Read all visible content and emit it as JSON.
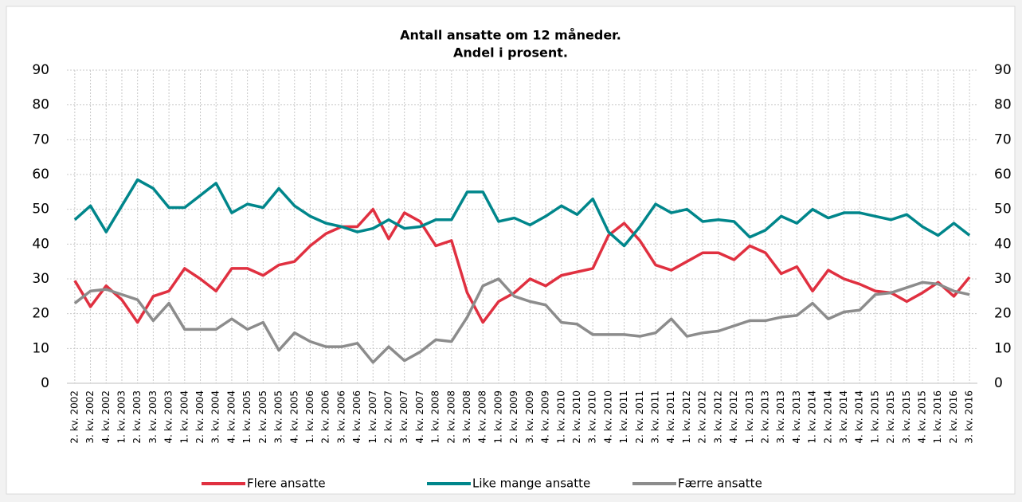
{
  "chart_data": {
    "type": "line",
    "title": "Antall ansatte om 12 måneder.",
    "subtitle": "Andel i prosent.",
    "categories": [
      "2. kv. 2002",
      "3. kv. 2002",
      "4. kv. 2002",
      "1. kv. 2003",
      "2. kv. 2003",
      "3. kv. 2003",
      "4. kv. 2003",
      "1. kv. 2004",
      "2. kv. 2004",
      "3. kv. 2004",
      "4. kv. 2004",
      "1. kv. 2005",
      "2. kv. 2005",
      "3. kv. 2005",
      "4. kv. 2005",
      "1. kv. 2006",
      "2. kv. 2006",
      "3. kv. 2006",
      "4. kv. 2006",
      "1. kv. 2007",
      "2. kv. 2007",
      "3. kv. 2007",
      "4. kv. 2007",
      "1. kv. 2008",
      "2. kv. 2008",
      "3. kv. 2008",
      "4. kv. 2008",
      "1. kv. 2009",
      "2. kv. 2009",
      "3. kv. 2009",
      "4. kv. 2009",
      "1. kv. 2010",
      "2. kv. 2010",
      "3. kv. 2010",
      "4. kv. 2010",
      "1. kv. 2011",
      "2. kv. 2011",
      "3. kv. 2011",
      "4. kv. 2011",
      "1. kv. 2012",
      "2. kv. 2012",
      "3. kv. 2012",
      "4. kv. 2012",
      "1. kv. 2013",
      "2. kv. 2013",
      "3. kv. 2013",
      "4. kv. 2013",
      "1. kv. 2014",
      "2. kv. 2014",
      "3. kv. 2014",
      "4. kv. 2014",
      "1. kv. 2015",
      "2. kv. 2015",
      "3. kv. 2015",
      "4. kv. 2015",
      "1. kv. 2016",
      "2. kv. 2016",
      "3. kv. 2016"
    ],
    "series": [
      {
        "name": "Flere ansatte",
        "color": "#e03040",
        "values": [
          29.5,
          22,
          28,
          24,
          17.5,
          25,
          26.5,
          33,
          30,
          26.5,
          33,
          33,
          31,
          34,
          35,
          39.5,
          43,
          45,
          45,
          50,
          41.5,
          49,
          46.5,
          39.5,
          41,
          26,
          17.5,
          23.5,
          26,
          30,
          28,
          31,
          32,
          33,
          42.5,
          46,
          41,
          34,
          32.5,
          35,
          37.5,
          37.5,
          35.5,
          39.5,
          37.5,
          31.5,
          33.5,
          26.5,
          32.5,
          30,
          28.5,
          26.5,
          26,
          23.5,
          26,
          29,
          25,
          30.5
        ]
      },
      {
        "name": "Like mange ansatte",
        "color": "#00868b",
        "values": [
          47,
          51,
          43.5,
          51,
          58.5,
          56,
          50.5,
          50.5,
          54,
          57.5,
          49,
          51.5,
          50.5,
          56,
          51,
          48,
          46,
          45,
          43.5,
          44.5,
          47,
          44.5,
          45,
          47,
          47,
          55,
          55,
          46.5,
          47.5,
          45.5,
          48,
          51,
          48.5,
          53,
          43.5,
          39.5,
          45,
          51.5,
          49,
          50,
          46.5,
          47,
          46.5,
          42,
          44,
          48,
          46,
          50,
          47.5,
          49,
          49,
          48,
          47,
          48.5,
          45,
          42.5,
          46,
          42.5
        ]
      },
      {
        "name": "Færre ansatte",
        "color": "#8c8c8c",
        "values": [
          23,
          26.5,
          27,
          25.5,
          24,
          18,
          23,
          15.5,
          15.5,
          15.5,
          18.5,
          15.5,
          17.5,
          9.5,
          14.5,
          12,
          10.5,
          10.5,
          11.5,
          6,
          10.5,
          6.5,
          9,
          12.5,
          12,
          19,
          28,
          30,
          25,
          23.5,
          22.5,
          17.5,
          17,
          14,
          14,
          14,
          13.5,
          14.5,
          18.5,
          13.5,
          14.5,
          15,
          16.5,
          18,
          18,
          19,
          19.5,
          23,
          18.5,
          20.5,
          21,
          25.5,
          26,
          27.5,
          29,
          28.5,
          26.5,
          25.5
        ]
      }
    ],
    "ylim": [
      0,
      90
    ],
    "yticks": [
      0,
      10,
      20,
      30,
      40,
      50,
      60,
      70,
      80,
      90
    ],
    "y2lim": [
      0,
      90
    ],
    "y2ticks": [
      0,
      10,
      20,
      30,
      40,
      50,
      60,
      70,
      80,
      90
    ],
    "grid": true,
    "legend": "bottom"
  }
}
